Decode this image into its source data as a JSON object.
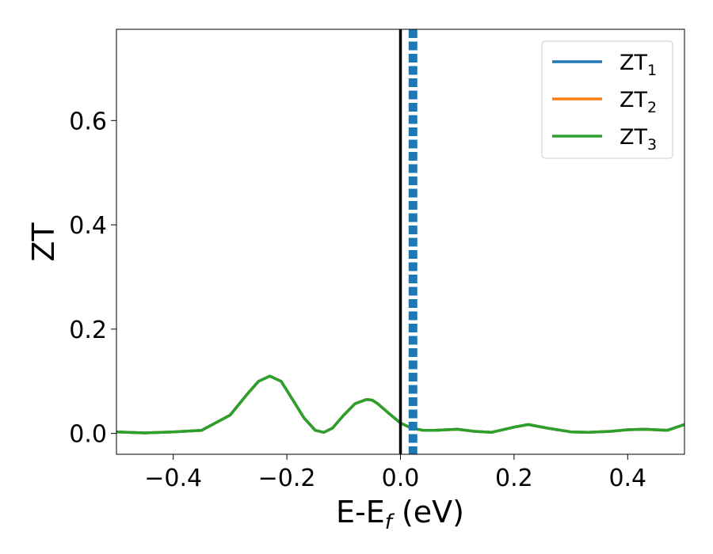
{
  "chart_data": {
    "type": "line",
    "title": "",
    "ylabel": "ZT",
    "xlabel": {
      "prefix": "E-E",
      "sub": "f",
      "suffix": " (eV)"
    },
    "xlim": [
      -0.5,
      0.5
    ],
    "ylim": [
      -0.04,
      0.775
    ],
    "xticks": [
      -0.4,
      -0.2,
      0.0,
      0.2,
      0.4
    ],
    "xtick_labels": [
      "−0.4",
      "−0.2",
      "0.0",
      "0.2",
      "0.4"
    ],
    "yticks": [
      0.0,
      0.2,
      0.4,
      0.6
    ],
    "ytick_labels": [
      "0.0",
      "0.2",
      "0.4",
      "0.6"
    ],
    "grid": false,
    "legend_position": "top-right",
    "vlines": [
      {
        "x": 0.0,
        "color": "#000000",
        "style": "solid"
      },
      {
        "x": 0.022,
        "color": "#1f77b4",
        "style": "dashed"
      }
    ],
    "series": [
      {
        "name": "ZT",
        "name_sub": "1",
        "color": "#1f77b4",
        "x": [
          -0.5,
          -0.45,
          -0.4,
          -0.35,
          -0.3,
          -0.27,
          -0.25,
          -0.23,
          -0.21,
          -0.19,
          -0.17,
          -0.15,
          -0.135,
          -0.12,
          -0.1,
          -0.08,
          -0.06,
          -0.05,
          -0.04,
          -0.02,
          0.0,
          0.02,
          0.04,
          0.06,
          0.1,
          0.13,
          0.16,
          0.2,
          0.225,
          0.26,
          0.3,
          0.33,
          0.37,
          0.4,
          0.43,
          0.47,
          0.5
        ],
        "y": [
          0.003,
          0.001,
          0.003,
          0.006,
          0.035,
          0.075,
          0.1,
          0.11,
          0.1,
          0.065,
          0.03,
          0.006,
          0.002,
          0.01,
          0.035,
          0.057,
          0.065,
          0.064,
          0.057,
          0.038,
          0.02,
          0.01,
          0.006,
          0.006,
          0.008,
          0.004,
          0.002,
          0.012,
          0.017,
          0.01,
          0.003,
          0.002,
          0.004,
          0.007,
          0.008,
          0.006,
          0.017
        ]
      },
      {
        "name": "ZT",
        "name_sub": "2",
        "color": "#ff7f0e",
        "x": [
          -0.5,
          -0.45,
          -0.4,
          -0.35,
          -0.3,
          -0.27,
          -0.25,
          -0.23,
          -0.21,
          -0.19,
          -0.17,
          -0.15,
          -0.135,
          -0.12,
          -0.1,
          -0.08,
          -0.06,
          -0.05,
          -0.04,
          -0.02,
          0.0,
          0.02,
          0.04,
          0.06,
          0.1,
          0.13,
          0.16,
          0.2,
          0.225,
          0.26,
          0.3,
          0.33,
          0.37,
          0.4,
          0.43,
          0.47,
          0.5
        ],
        "y": [
          0.003,
          0.001,
          0.003,
          0.006,
          0.035,
          0.075,
          0.1,
          0.11,
          0.1,
          0.065,
          0.03,
          0.006,
          0.002,
          0.01,
          0.035,
          0.057,
          0.065,
          0.064,
          0.057,
          0.038,
          0.02,
          0.01,
          0.006,
          0.006,
          0.008,
          0.004,
          0.002,
          0.012,
          0.017,
          0.01,
          0.003,
          0.002,
          0.004,
          0.007,
          0.008,
          0.006,
          0.017
        ]
      },
      {
        "name": "ZT",
        "name_sub": "3",
        "color": "#2ca02c",
        "x": [
          -0.5,
          -0.45,
          -0.4,
          -0.35,
          -0.3,
          -0.27,
          -0.25,
          -0.23,
          -0.21,
          -0.19,
          -0.17,
          -0.15,
          -0.135,
          -0.12,
          -0.1,
          -0.08,
          -0.06,
          -0.05,
          -0.04,
          -0.02,
          0.0,
          0.02,
          0.04,
          0.06,
          0.1,
          0.13,
          0.16,
          0.2,
          0.225,
          0.26,
          0.3,
          0.33,
          0.37,
          0.4,
          0.43,
          0.47,
          0.5
        ],
        "y": [
          0.003,
          0.001,
          0.003,
          0.006,
          0.035,
          0.075,
          0.1,
          0.11,
          0.1,
          0.065,
          0.03,
          0.006,
          0.002,
          0.01,
          0.035,
          0.057,
          0.065,
          0.064,
          0.057,
          0.038,
          0.02,
          0.01,
          0.006,
          0.006,
          0.008,
          0.004,
          0.002,
          0.012,
          0.017,
          0.01,
          0.003,
          0.002,
          0.004,
          0.007,
          0.008,
          0.006,
          0.017
        ]
      }
    ]
  }
}
